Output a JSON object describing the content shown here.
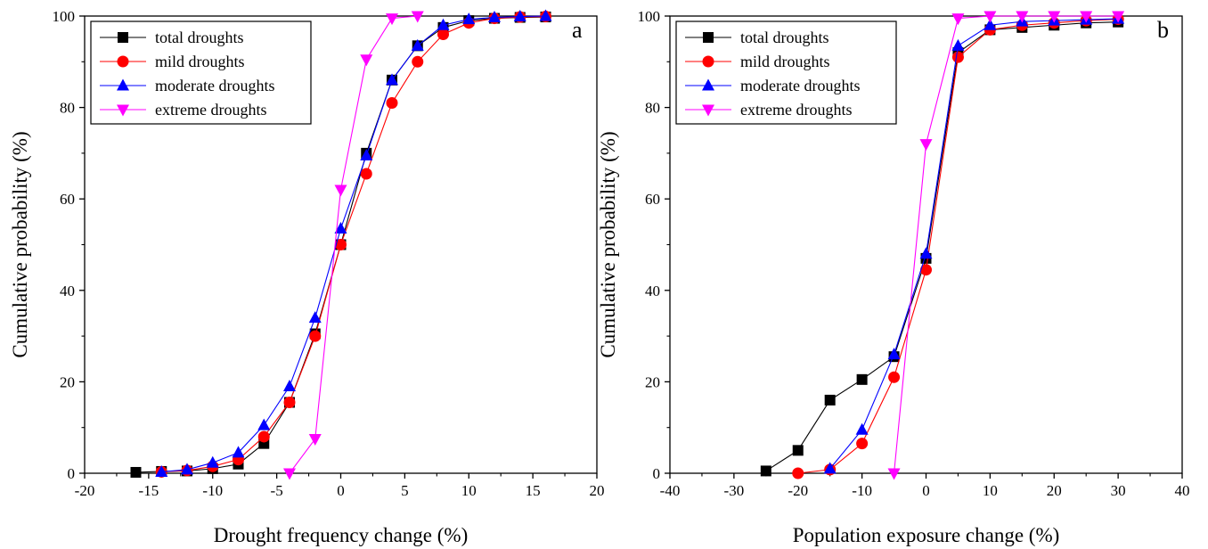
{
  "chart_data": [
    {
      "type": "line",
      "panel_label": "a",
      "xlabel": "Drought frequency change (%)",
      "ylabel": "Cumulative probability (%)",
      "xlim": [
        -20,
        20
      ],
      "ylim": [
        0,
        100
      ],
      "xticks": [
        -20,
        -15,
        -10,
        -5,
        0,
        5,
        10,
        15,
        20
      ],
      "xtick_labels": [
        "-20",
        "-15",
        "-10",
        "-5",
        "0",
        "5",
        "10",
        "15",
        "20"
      ],
      "yticks": [
        0,
        20,
        40,
        60,
        80,
        100
      ],
      "ytick_labels": [
        "0",
        "20",
        "40",
        "60",
        "80",
        "100"
      ],
      "legend_position": "top-left",
      "series": [
        {
          "name": "total droughts",
          "marker": "square",
          "color": "#000000",
          "x": [
            -16,
            -14,
            -12,
            -10,
            -8,
            -6,
            -4,
            -2,
            0,
            2,
            4,
            6,
            8,
            10,
            12,
            14,
            16
          ],
          "y": [
            0.2,
            0.4,
            0.5,
            1,
            2,
            6.5,
            15.5,
            30.5,
            50,
            70,
            86,
            93.5,
            97.5,
            99,
            99.5,
            99.7,
            99.8
          ]
        },
        {
          "name": "mild droughts",
          "marker": "circle",
          "color": "#ff0000",
          "x": [
            -14,
            -12,
            -10,
            -8,
            -6,
            -4,
            -2,
            0,
            2,
            4,
            6,
            8,
            10,
            12,
            14,
            16
          ],
          "y": [
            0.3,
            0.6,
            1.5,
            3,
            8,
            15.5,
            30,
            50,
            65.5,
            81,
            90,
            96,
            98.5,
            99.5,
            99.8,
            99.9
          ]
        },
        {
          "name": "moderate droughts",
          "marker": "triangle-up",
          "color": "#0000ff",
          "x": [
            -14,
            -12,
            -10,
            -8,
            -6,
            -4,
            -2,
            0,
            2,
            4,
            6,
            8,
            10,
            12,
            14,
            16
          ],
          "y": [
            0.3,
            0.8,
            2.3,
            4.5,
            10.5,
            19,
            34,
            53.5,
            69.5,
            86,
            93.5,
            98,
            99.3,
            99.7,
            99.9,
            100
          ]
        },
        {
          "name": "extreme droughts",
          "marker": "triangle-down",
          "color": "#ff00ff",
          "x": [
            -4,
            -2,
            0,
            2,
            4,
            6
          ],
          "y": [
            0,
            7.5,
            62,
            90.5,
            99.5,
            100
          ]
        }
      ]
    },
    {
      "type": "line",
      "panel_label": "b",
      "xlabel": "Population exposure change (%)",
      "ylabel": "Cumulative probability (%)",
      "xlim": [
        -40,
        40
      ],
      "ylim": [
        0,
        100
      ],
      "xticks": [
        -40,
        -30,
        -20,
        -10,
        0,
        10,
        20,
        30,
        40
      ],
      "xtick_labels": [
        "-40",
        "-30",
        "-20",
        "-10",
        "0",
        "10",
        "20",
        "30",
        "40"
      ],
      "yticks": [
        0,
        20,
        40,
        60,
        80,
        100
      ],
      "ytick_labels": [
        "0",
        "20",
        "40",
        "60",
        "80",
        "100"
      ],
      "legend_position": "top-left",
      "series": [
        {
          "name": "total droughts",
          "marker": "square",
          "color": "#000000",
          "x": [
            -25,
            -20,
            -15,
            -10,
            -5,
            0,
            5,
            10,
            15,
            20,
            25,
            30
          ],
          "y": [
            0.5,
            5,
            16,
            20.5,
            25.5,
            47,
            92,
            97,
            97.5,
            98,
            98.5,
            98.7
          ]
        },
        {
          "name": "mild droughts",
          "marker": "circle",
          "color": "#ff0000",
          "x": [
            -20,
            -15,
            -10,
            -5,
            0,
            5,
            10,
            15,
            20,
            25,
            30
          ],
          "y": [
            0,
            0.8,
            6.5,
            21,
            44.5,
            91,
            97,
            98,
            98.5,
            99,
            99.3
          ]
        },
        {
          "name": "moderate droughts",
          "marker": "triangle-up",
          "color": "#0000ff",
          "x": [
            -15,
            -10,
            -5,
            0,
            5,
            10,
            15,
            20,
            25,
            30
          ],
          "y": [
            1,
            9.5,
            26,
            48,
            93.5,
            98,
            98.8,
            99,
            99.2,
            99.4
          ]
        },
        {
          "name": "extreme droughts",
          "marker": "triangle-down",
          "color": "#ff00ff",
          "x": [
            -5,
            0,
            5,
            10,
            15,
            20,
            25,
            30
          ],
          "y": [
            0,
            72,
            99.5,
            100,
            100,
            100,
            100,
            100
          ]
        }
      ]
    }
  ]
}
